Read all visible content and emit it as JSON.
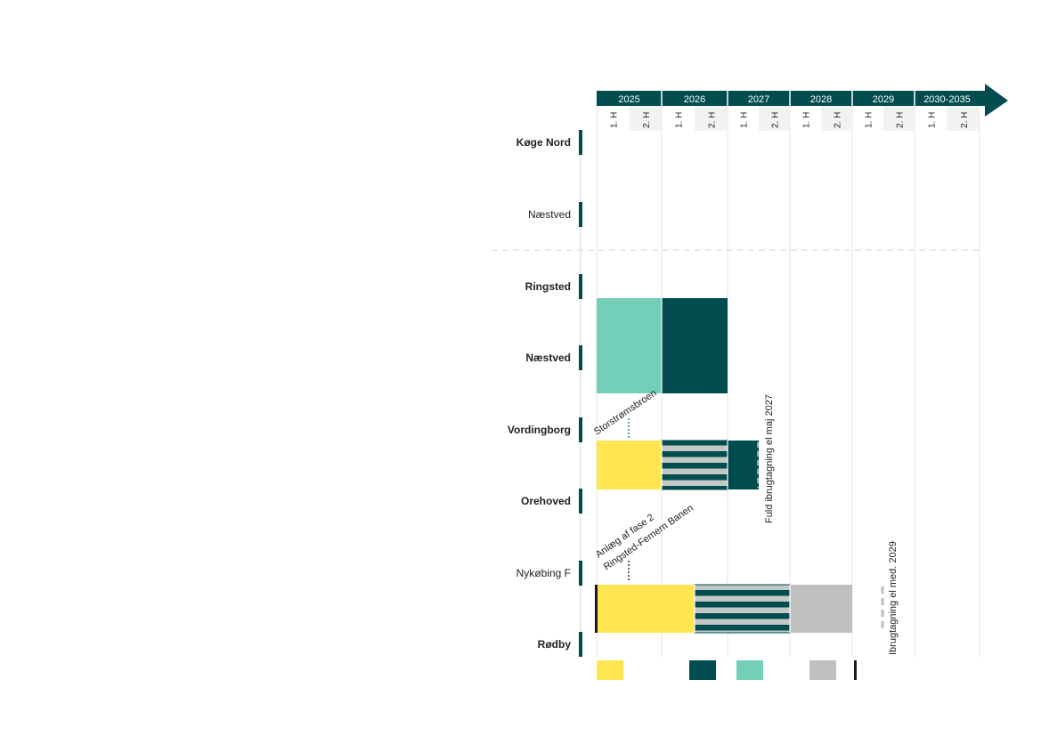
{
  "colors": {
    "dark_teal": "#004c4f",
    "light_teal": "#73cfb8",
    "yellow": "#ffe54f",
    "gray": "#c0c0c0",
    "stripe_gray": "#c3c8c6",
    "black": "#1a1a1a",
    "half_bg": "#f2f2f2",
    "grid": "#e4e4e4"
  },
  "chart_data": {
    "type": "gantt",
    "timeline": {
      "years": [
        {
          "label": "2025",
          "halves": 2
        },
        {
          "label": "2026",
          "halves": 2
        },
        {
          "label": "2027",
          "halves": 2
        },
        {
          "label": "2028",
          "halves": 2
        },
        {
          "label": "2029",
          "halves": 2
        },
        {
          "label": "2030-2035",
          "halves": 2
        }
      ],
      "half_labels": [
        "1. H",
        "2. H"
      ]
    },
    "stations": [
      {
        "label": "Køge Nord",
        "bold": true
      },
      {
        "label": "Næstved",
        "bold": false
      },
      {
        "label": "Ringsted",
        "bold": true
      },
      {
        "label": "Næstved",
        "bold": true
      },
      {
        "label": "Vordingborg",
        "bold": true
      },
      {
        "label": "Orehoved",
        "bold": true
      },
      {
        "label": "Nykøbing F",
        "bold": false
      },
      {
        "label": "Rødby",
        "bold": true
      }
    ],
    "segments": [
      {
        "from_station": 2,
        "to_station": 3,
        "start_half": 0,
        "end_half": 2,
        "fill": "light_teal"
      },
      {
        "from_station": 2,
        "to_station": 3,
        "start_half": 2,
        "end_half": 4,
        "fill": "dark_teal"
      },
      {
        "from_station": 4,
        "to_station": 5,
        "start_half": 0,
        "end_half": 2,
        "fill": "yellow"
      },
      {
        "from_station": 4,
        "to_station": 5,
        "start_half": 2,
        "end_half": 4,
        "fill": "striped"
      },
      {
        "from_station": 4,
        "to_station": 5,
        "start_half": 4,
        "end_half": 5,
        "fill": "dark_teal"
      },
      {
        "from_station": 6,
        "to_station": 7,
        "start_half": 0,
        "end_half": 3,
        "fill": "yellow"
      },
      {
        "from_station": 6,
        "to_station": 7,
        "start_half": 3,
        "end_half": 6,
        "fill": "striped"
      },
      {
        "from_station": 6,
        "to_station": 7,
        "start_half": 6,
        "end_half": 8,
        "fill": "gray"
      }
    ],
    "annotations": [
      {
        "text": "Storstrømsbroen"
      },
      {
        "text": "Fuld  ibrugtagning el maj 2027"
      },
      {
        "text": "Anlæg  af fase 2"
      },
      {
        "text": "Ringsted-Femern  Banen"
      },
      {
        "text": "Ibrugtagning el  med. 2029"
      }
    ],
    "legend": [
      "yellow",
      "dark_teal",
      "light_teal",
      "gray",
      "black"
    ]
  }
}
